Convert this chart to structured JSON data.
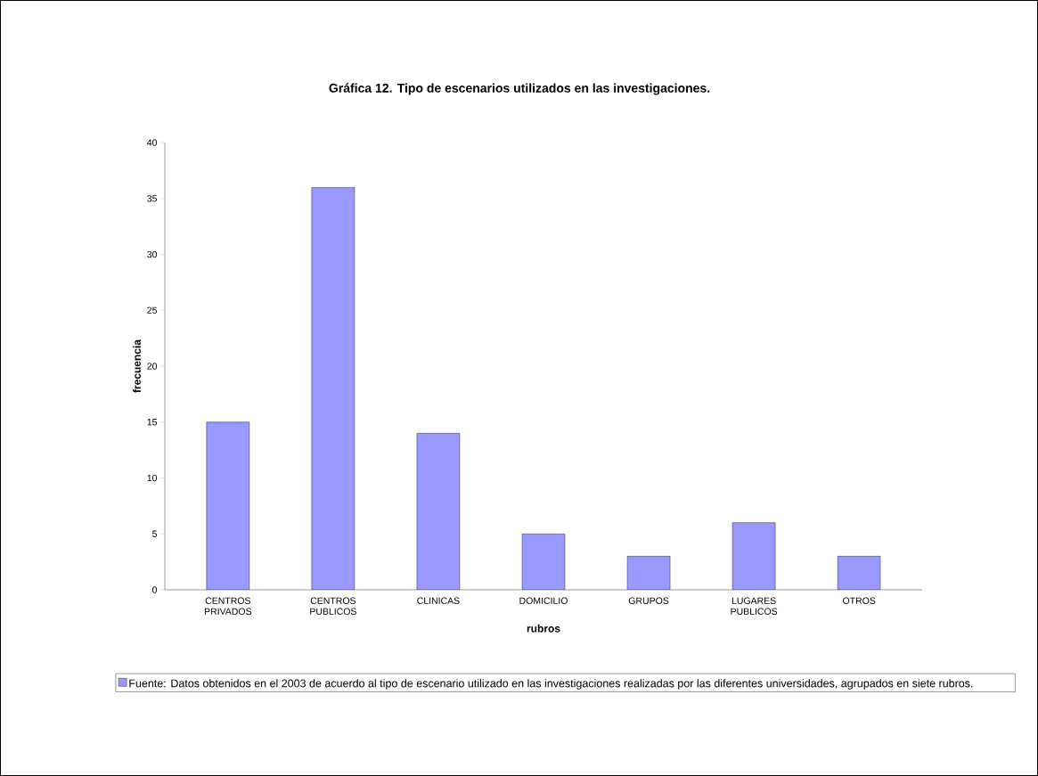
{
  "chart_data": {
    "type": "bar",
    "title": "Gráfica 12.  Tipo de escenarios utilizados en las investigaciones.",
    "xlabel": "rubros",
    "ylabel": "frecuencia",
    "categories": [
      "CENTROS PRIVADOS",
      "CENTROS PUBLICOS",
      "CLINICAS",
      "DOMICILIO",
      "GRUPOS",
      "LUGARES PUBLICOS",
      "OTROS"
    ],
    "series": [
      {
        "name": "Fuente: Datos obtenidos en el 2003 de acuerdo al tipo de escenario utilizado en las investigaciones realizadas por las diferentes universidades, agrupados en siete rubros.",
        "color": "#9999ff",
        "values": [
          15,
          36,
          14,
          5,
          3,
          6,
          3
        ]
      }
    ],
    "ylim": [
      0,
      40
    ],
    "yticks": [
      0,
      5,
      10,
      15,
      20,
      25,
      30,
      35,
      40
    ],
    "grid": false,
    "legend": "bottom"
  }
}
